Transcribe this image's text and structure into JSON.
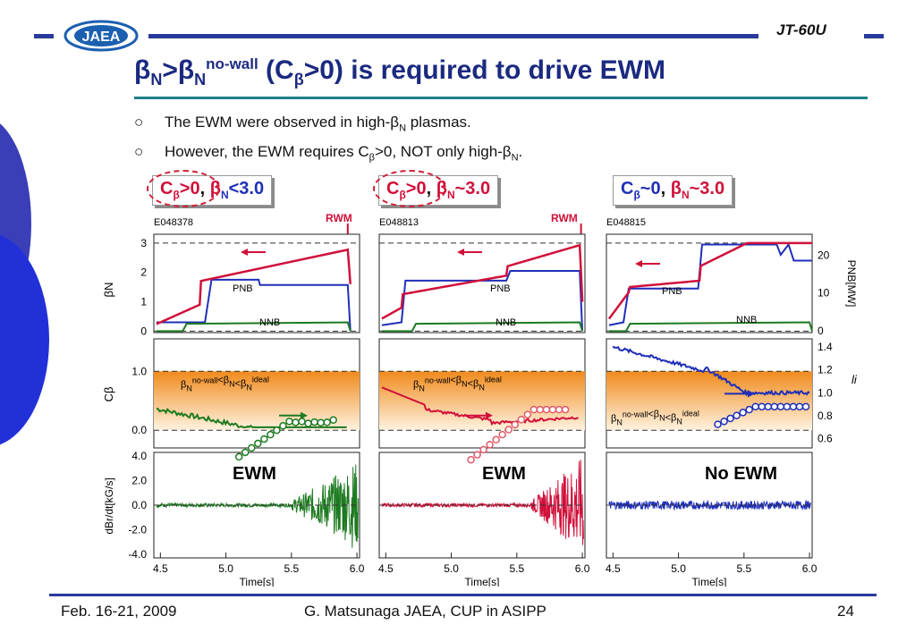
{
  "header": {
    "logo_text": "JAEA",
    "tag": "JT-60U"
  },
  "title": {
    "part1": "β",
    "sub1": "N",
    "gt": ">β",
    "sub2": "N",
    "sup2": "no-wall",
    "part2": " (C",
    "sub3": "β",
    "part3": ">0) is required to drive EWM"
  },
  "bullets": [
    {
      "mark": "○",
      "text": "The EWM were observed in high-β",
      "sub": "N",
      "tail": " plasmas."
    },
    {
      "mark": "○",
      "text": "However, the EWM requires C",
      "sub": "β",
      "mid": ">0, NOT only high-β",
      "sub2": "N",
      "tail": "."
    }
  ],
  "conditions": [
    {
      "c": "C",
      "csub": "β",
      "rel1": ">0",
      "comma": ",",
      "b": "β",
      "bsub": "N",
      "rel2": "<3.0"
    },
    {
      "c": "C",
      "csub": "β",
      "rel1": ">0",
      "comma": ",",
      "b": "β",
      "bsub": "N",
      "rel2": "~3.0"
    },
    {
      "c": "C",
      "csub": "β",
      "rel1": "~0",
      "comma": ",",
      "b": "β",
      "bsub": "N",
      "rel2": "~3.0"
    }
  ],
  "chart_data": {
    "type": "line",
    "shots": [
      "E048378",
      "E048813",
      "E048815"
    ],
    "rwm_label": "RWM",
    "x_label": "Time[s]",
    "x_ticks": [
      "4.5",
      "5.0",
      "5.5",
      "6.0"
    ],
    "row1": {
      "ylabel": "βN",
      "yticks": [
        "0",
        "1",
        "2",
        "3"
      ],
      "right_label": "PNB[MW]",
      "right_ticks": [
        "0",
        "10",
        "20"
      ],
      "series_labels": {
        "pnb": "PNB",
        "nnb": "NNB"
      }
    },
    "row2": {
      "ylabel": "Cβ",
      "yticks": [
        "0.0",
        "1.0"
      ],
      "right_label": "li",
      "right_ticks": [
        "0.6",
        "0.8",
        "1.0",
        "1.2",
        "1.4"
      ],
      "band_label": {
        "b": "β",
        "sub": "N",
        "sup": "no-wall",
        "mid": "<β",
        "sub2": "N",
        "mid2": "<β",
        "sub3": "N",
        "sup3": "ideal"
      }
    },
    "row3": {
      "ylabel": "dBr/dt[kG/s]",
      "yticks": [
        "-4.0",
        "-2.0",
        "0.0",
        "2.0",
        "4.0"
      ],
      "labels": [
        "EWM",
        "EWM",
        "No EWM"
      ]
    }
  },
  "footer": {
    "date": "Feb. 16-21, 2009",
    "author": "G. Matsunaga JAEA, CUP in ASIPP",
    "page": "24"
  },
  "colors": {
    "navy": "#2a3a9c",
    "red": "#d0103a",
    "blue": "#1f2fb8",
    "green": "#1d7a20"
  }
}
